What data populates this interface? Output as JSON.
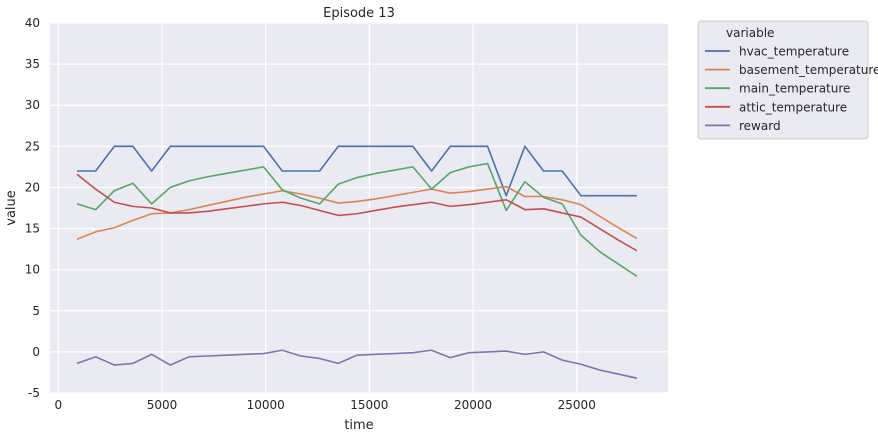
{
  "chart_data": {
    "type": "line",
    "title": "Episode 13",
    "xlabel": "time",
    "ylabel": "value",
    "xlim": [
      -400,
      29400
    ],
    "ylim": [
      -5,
      40
    ],
    "xticks": [
      0,
      5000,
      10000,
      15000,
      20000,
      25000
    ],
    "yticks": [
      -5,
      0,
      5,
      10,
      15,
      20,
      25,
      30,
      35,
      40
    ],
    "grid": true,
    "legend": {
      "title": "variable",
      "placement": "outside-top-right"
    },
    "x": [
      900,
      1800,
      2700,
      3600,
      4500,
      5400,
      6300,
      7200,
      8100,
      9000,
      9900,
      10800,
      11700,
      12600,
      13500,
      14400,
      15300,
      16200,
      17100,
      18000,
      18900,
      19800,
      20700,
      21600,
      22500,
      23400,
      24300,
      25200,
      26100,
      27000,
      27900
    ],
    "series": [
      {
        "name": "hvac_temperature",
        "color": "#4c72b0",
        "values": [
          22,
          22,
          25,
          25,
          22,
          25,
          25,
          25,
          25,
          25,
          25,
          22,
          22,
          22,
          25,
          25,
          25,
          25,
          25,
          22,
          25,
          25,
          25,
          19,
          25,
          22,
          22,
          19,
          19,
          19,
          19
        ]
      },
      {
        "name": "basement_temperature",
        "color": "#dd8452",
        "values": [
          13.7,
          14.6,
          15.1,
          16.0,
          16.8,
          16.9,
          17.3,
          17.8,
          18.3,
          18.8,
          19.2,
          19.6,
          19.2,
          18.7,
          18.1,
          18.3,
          18.6,
          19.0,
          19.4,
          19.8,
          19.3,
          19.5,
          19.8,
          20.1,
          18.9,
          18.9,
          18.5,
          17.9,
          16.5,
          15.1,
          13.8
        ]
      },
      {
        "name": "main_temperature",
        "color": "#55a868",
        "values": [
          18.0,
          17.3,
          19.6,
          20.5,
          18.0,
          20.0,
          20.8,
          21.3,
          21.7,
          22.1,
          22.5,
          19.7,
          18.7,
          18.0,
          20.4,
          21.2,
          21.7,
          22.1,
          22.5,
          19.8,
          21.8,
          22.5,
          22.9,
          17.2,
          20.7,
          18.8,
          18.0,
          14.2,
          12.2,
          10.7,
          9.2
        ]
      },
      {
        "name": "attic_temperature",
        "color": "#c44e52",
        "values": [
          21.6,
          19.8,
          18.2,
          17.7,
          17.5,
          16.9,
          16.9,
          17.1,
          17.4,
          17.7,
          18.0,
          18.2,
          17.8,
          17.2,
          16.6,
          16.8,
          17.2,
          17.6,
          17.9,
          18.2,
          17.7,
          17.9,
          18.2,
          18.5,
          17.3,
          17.4,
          16.9,
          16.4,
          15.0,
          13.6,
          12.3
        ]
      },
      {
        "name": "reward",
        "color": "#8172b3",
        "values": [
          -1.4,
          -0.6,
          -1.6,
          -1.4,
          -0.3,
          -1.6,
          -0.6,
          -0.5,
          -0.4,
          -0.3,
          -0.2,
          0.2,
          -0.5,
          -0.8,
          -1.4,
          -0.4,
          -0.3,
          -0.2,
          -0.1,
          0.2,
          -0.7,
          -0.1,
          0.0,
          0.1,
          -0.3,
          0.0,
          -1.0,
          -1.5,
          -2.2,
          -2.7,
          -3.2
        ]
      }
    ]
  }
}
